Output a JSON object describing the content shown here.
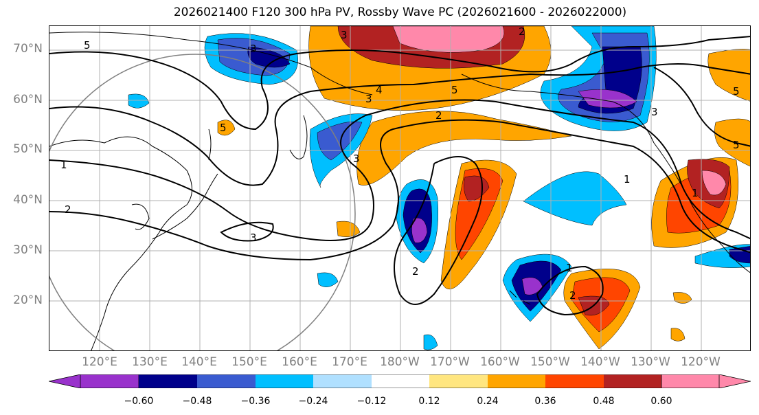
{
  "title": "2026021400 F120 300 hPa PV, Rossby Wave PC (2026021600 - 2026022000)",
  "lat_labels": [
    "70°N",
    "60°N",
    "50°N",
    "40°N",
    "30°N",
    "20°N"
  ],
  "lon_labels": [
    "120°E",
    "130°E",
    "140°E",
    "150°E",
    "160°E",
    "170°E",
    "180°W",
    "170°W",
    "160°W",
    "150°W",
    "140°W",
    "130°W",
    "120°W"
  ],
  "contour_labels": [
    "5",
    "5",
    "3",
    "3",
    "3",
    "3",
    "3",
    "4",
    "5",
    "5",
    "5",
    "2",
    "2",
    "2",
    "1",
    "1",
    "1",
    "2",
    "3",
    "1",
    "2"
  ],
  "colorbar": {
    "ticks": [
      "−0.60",
      "−0.48",
      "−0.36",
      "−0.24",
      "−0.12",
      "0.12",
      "0.24",
      "0.36",
      "0.48",
      "0.60"
    ],
    "colors": [
      "#9932cc",
      "#00008b",
      "#3a5bd0",
      "#00bfff",
      "#b0e0ff",
      "#ffffff",
      "#ffe680",
      "#ffa500",
      "#ff4500",
      "#b22222",
      "#ff88aa"
    ]
  },
  "colors": {
    "pink": "#ff88aa",
    "darkred": "#b22222",
    "red": "#ff4500",
    "orange": "#ffa500",
    "yellow": "#ffe680",
    "violet": "#9932cc",
    "navy": "#00008b",
    "blue": "#3a5bd0",
    "sky": "#00bfff",
    "light": "#b0e0ff"
  }
}
